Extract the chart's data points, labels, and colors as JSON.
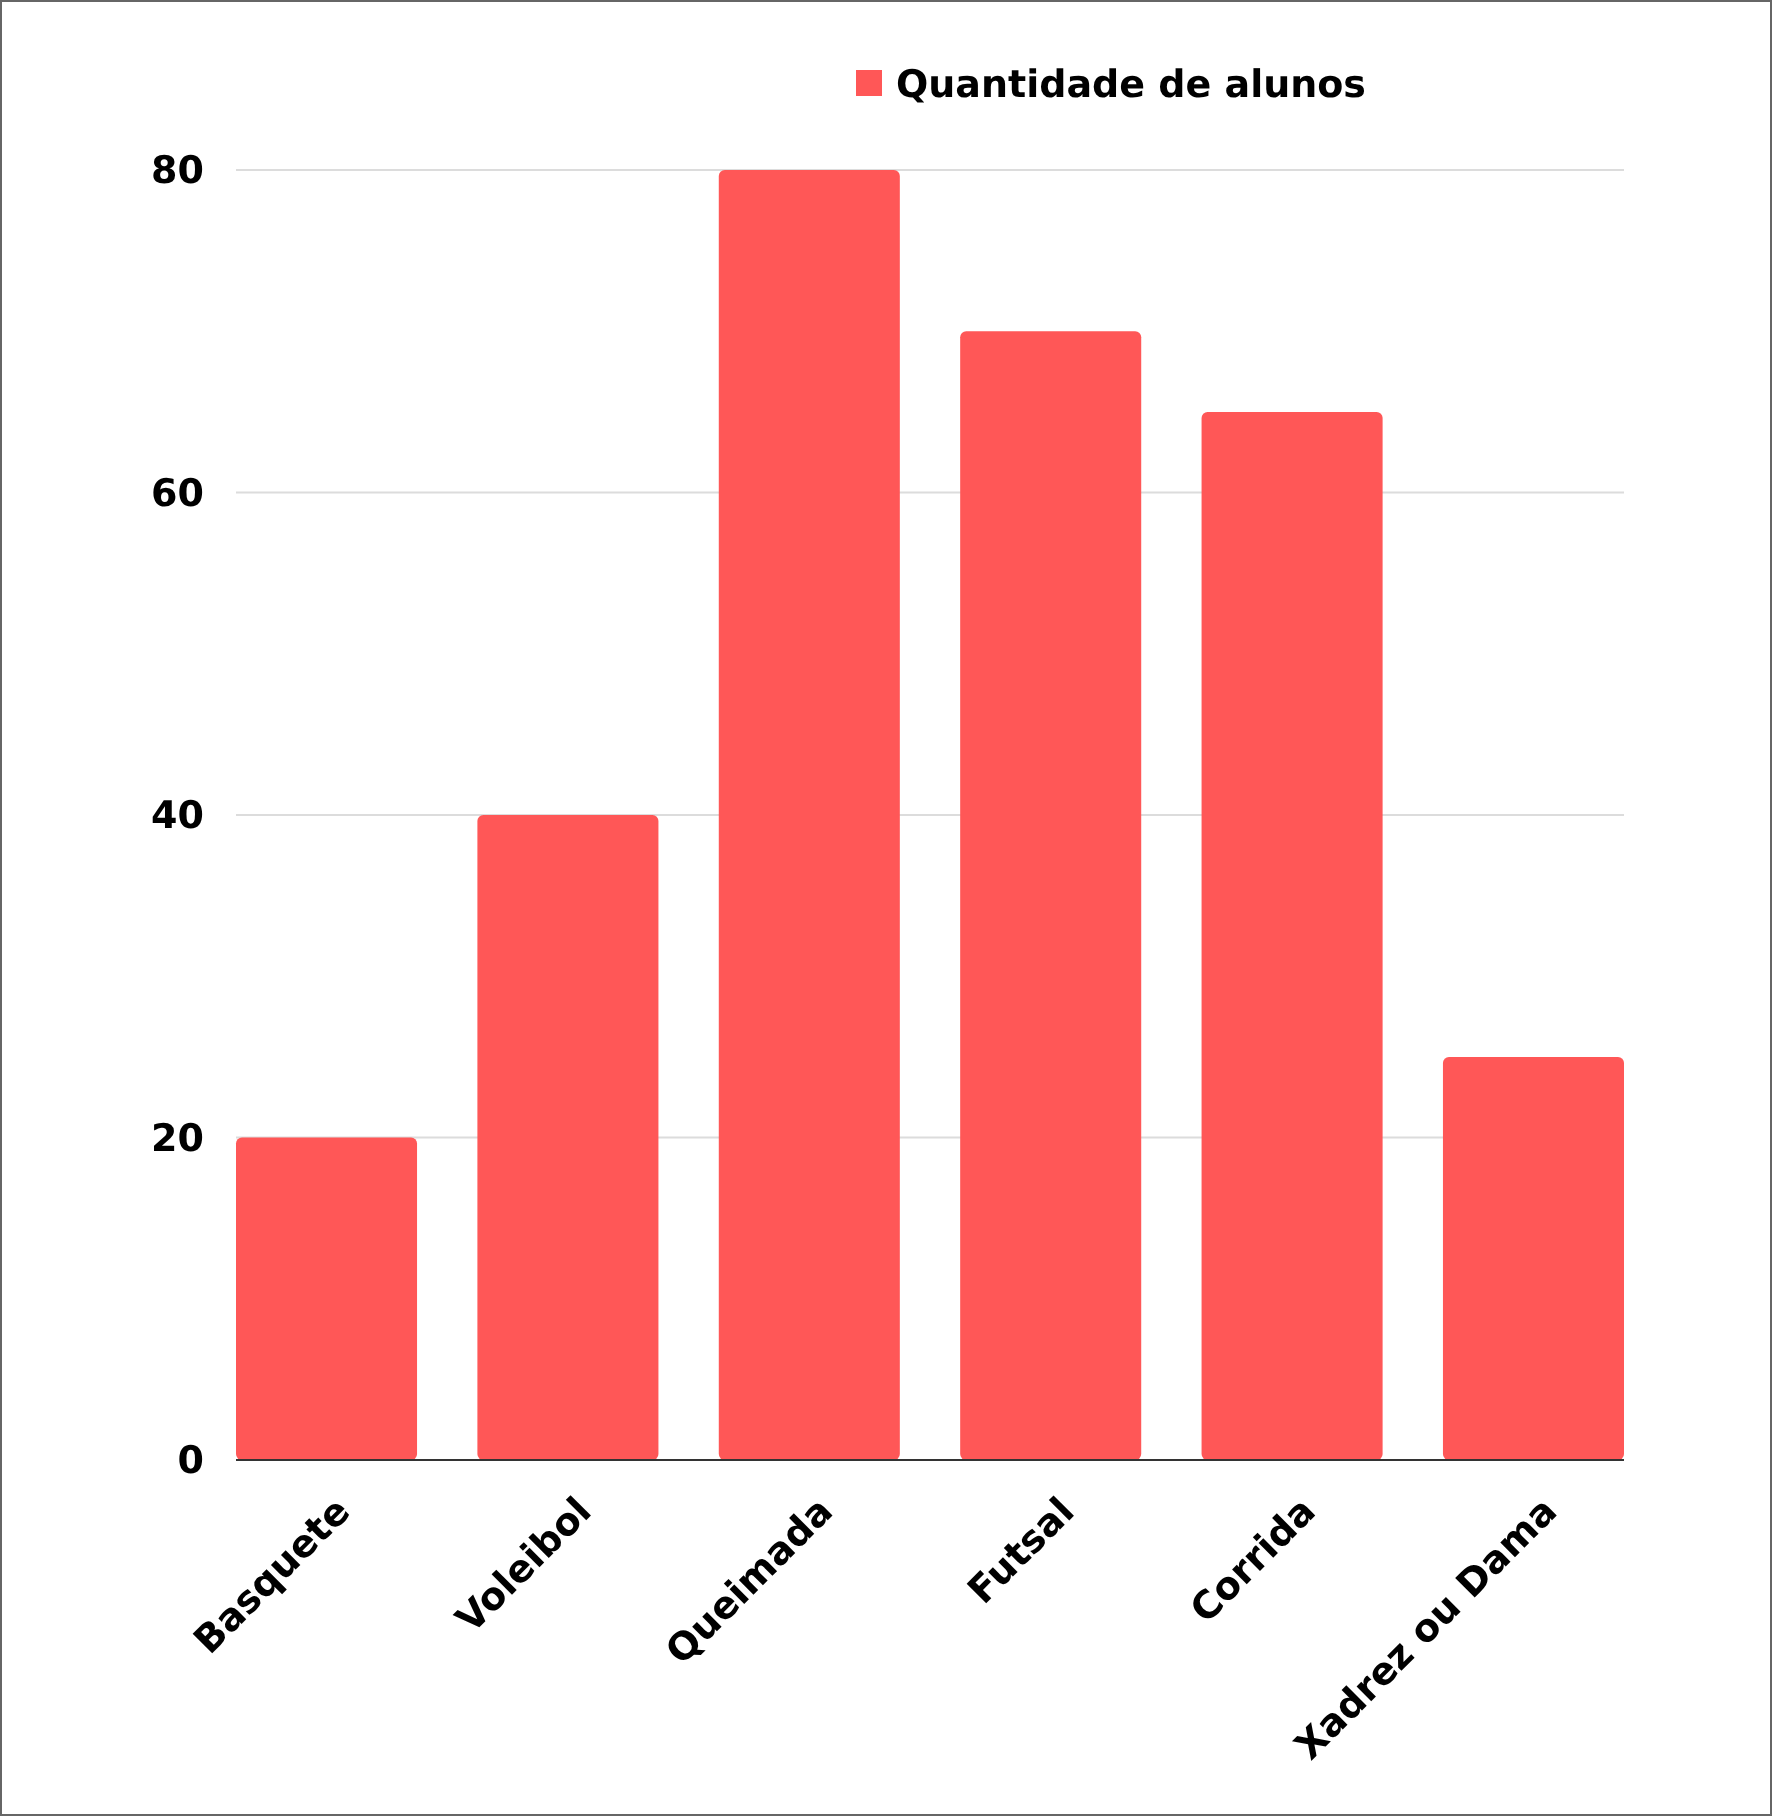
{
  "chart_data": {
    "type": "bar",
    "categories": [
      "Basquete",
      "Voleibol",
      "Queimada",
      "Futsal",
      "Corrida",
      "Xadrez ou Dama"
    ],
    "series": [
      {
        "name": "Quantidade de alunos",
        "color": "#ff5757",
        "values": [
          20,
          40,
          80,
          70,
          65,
          25
        ]
      }
    ],
    "ylim": [
      0,
      80
    ],
    "yticks": [
      0,
      20,
      40,
      60,
      80
    ],
    "grid": "y",
    "legend": "top"
  }
}
